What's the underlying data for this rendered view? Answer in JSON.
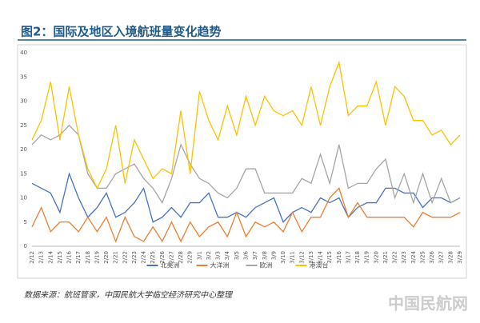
{
  "chart_data": {
    "type": "line",
    "title": "图2：国际及地区入境航班量变化趋势",
    "source": "数据来源：航班管家，中国民航大学临空经济研究中心整理",
    "watermark": "中国民航网",
    "categories": [
      "2/12",
      "2/13",
      "2/14",
      "2/15",
      "2/16",
      "2/17",
      "2/18",
      "2/19",
      "2/20",
      "2/21",
      "2/22",
      "2/23",
      "2/24",
      "2/25",
      "2/26",
      "2/27",
      "2/28",
      "2/29",
      "3/1",
      "3/2",
      "3/3",
      "3/4",
      "3/5",
      "3/6",
      "3/7",
      "3/8",
      "3/9",
      "3/10",
      "3/11",
      "3/12",
      "3/13",
      "3/14",
      "3/15",
      "3/16",
      "3/17",
      "3/18",
      "3/19",
      "3/20",
      "3/21",
      "3/22",
      "3/23",
      "3/24",
      "3/25",
      "3/26",
      "3/27",
      "3/28",
      "3/29"
    ],
    "series": [
      {
        "name": "北美洲",
        "color": "#4472c4",
        "values": [
          13,
          12,
          11,
          7,
          15,
          10,
          6,
          8,
          11,
          6,
          7,
          9,
          12,
          5,
          6,
          8,
          6,
          9,
          9,
          11,
          6,
          6,
          7,
          6,
          8,
          9,
          10,
          5,
          7,
          8,
          7,
          10,
          9,
          10,
          6,
          8,
          9,
          9,
          12,
          12,
          11,
          11,
          8,
          10,
          10,
          9,
          10
        ]
      },
      {
        "name": "大洋洲",
        "color": "#ed7d31",
        "values": [
          4,
          8,
          3,
          5,
          5,
          3,
          6,
          3,
          6,
          1,
          6,
          2,
          1,
          4,
          1,
          5,
          1,
          5,
          2,
          4,
          5,
          2,
          7,
          2,
          5,
          4,
          5,
          3,
          7,
          3,
          6,
          6,
          10,
          12,
          6,
          9,
          6,
          6,
          6,
          6,
          6,
          4,
          7,
          6,
          6,
          6,
          7
        ]
      },
      {
        "name": "欧洲",
        "color": "#a5a5a5",
        "values": [
          21,
          23,
          22,
          23,
          25,
          23,
          15,
          12,
          12,
          15,
          16,
          17,
          14,
          12,
          9,
          14,
          21,
          17,
          14,
          13,
          11,
          10,
          12,
          16,
          16,
          11,
          11,
          11,
          11,
          14,
          13,
          19,
          13,
          21,
          12,
          13,
          13,
          16,
          18,
          10,
          15,
          9,
          15,
          9,
          14,
          9,
          10
        ]
      },
      {
        "name": "港澳台",
        "color": "#ffc000",
        "values": [
          22,
          26,
          34,
          22,
          33,
          23,
          16,
          12,
          16,
          25,
          13,
          22,
          18,
          14,
          16,
          15,
          28,
          15,
          32,
          26,
          22,
          29,
          23,
          31,
          25,
          31,
          28,
          27,
          28,
          25,
          33,
          25,
          33,
          38,
          27,
          29,
          29,
          34,
          25,
          33,
          31,
          26,
          26,
          23,
          24,
          21,
          23
        ]
      }
    ],
    "ylim": [
      0,
      40
    ],
    "yticks": [
      0,
      5,
      10,
      15,
      20,
      25,
      30,
      35,
      40
    ],
    "grid": false
  }
}
